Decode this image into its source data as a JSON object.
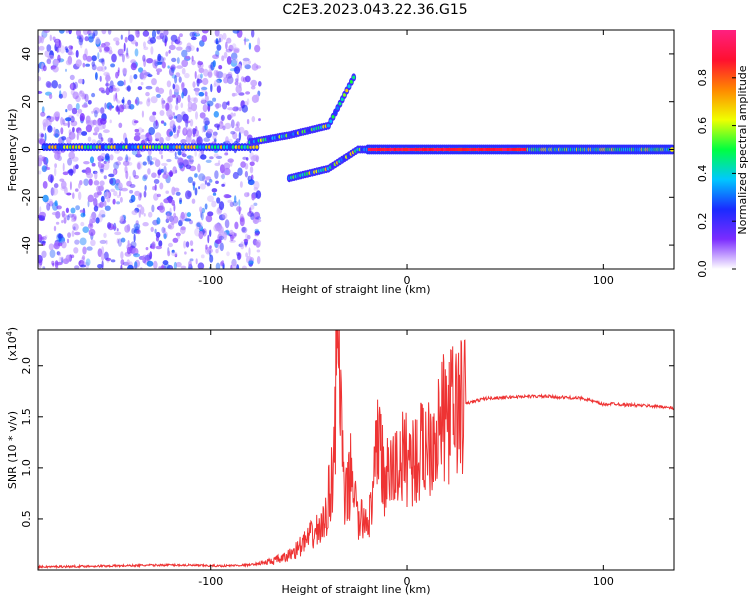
{
  "title": "C2E3.2023.043.22.36.G15",
  "chart_data": [
    {
      "type": "heatmap",
      "xlabel": "Height of straight line (km)",
      "ylabel": "Frequency (Hz)",
      "xlim": [
        -188,
        136
      ],
      "ylim": [
        -50,
        50
      ],
      "xticks": [
        -100,
        0,
        100
      ],
      "yticks": [
        -40,
        -20,
        0,
        20,
        40
      ],
      "colorbar": {
        "label": "Normalized spectral amplitude",
        "range": [
          0,
          1
        ],
        "ticks": [
          "0.0",
          "0.2",
          "0.4",
          "0.6",
          "0.8"
        ],
        "colors": [
          "#ffffff",
          "#7b2cff",
          "#1a2bff",
          "#00c8ff",
          "#00ff40",
          "#f0ff00",
          "#ff8800",
          "#ff1030",
          "#ff2080"
        ]
      },
      "features": [
        {
          "name": "noise region",
          "x": [
            -188,
            -75
          ],
          "freq": [
            -50,
            50
          ]
        },
        {
          "name": "carrier line left",
          "x": [
            -185,
            -75
          ],
          "freq": 1
        },
        {
          "name": "rising branch",
          "points": [
            [
              -80,
              3
            ],
            [
              -60,
              6
            ],
            [
              -40,
              10
            ],
            [
              -26,
              32
            ]
          ]
        },
        {
          "name": "falling branch",
          "points": [
            [
              -60,
              -12
            ],
            [
              -40,
              -8
            ],
            [
              -25,
              0
            ],
            [
              -10,
              0
            ]
          ]
        },
        {
          "name": "carrier line right",
          "x": [
            -20,
            136
          ],
          "freq": 0
        }
      ]
    },
    {
      "type": "line",
      "xlabel": "Height of straight line (km)",
      "ylabel": "SNR (10 * v/v)",
      "yscale_label": "(x10",
      "yscale_exp": "4",
      "xlim": [
        -188,
        136
      ],
      "ylim": [
        0,
        2.35
      ],
      "xticks": [
        -100,
        0,
        100
      ],
      "yticks": [
        0.5,
        1.0,
        1.5,
        2.0
      ],
      "series": [
        {
          "color": "#ee3333",
          "x": [
            -188,
            -150,
            -120,
            -95,
            -80,
            -70,
            -62,
            -55,
            -48,
            -42,
            -38,
            -35,
            -32,
            -28,
            -25,
            -22,
            -18,
            -14,
            -12,
            -8,
            -4,
            0,
            5,
            10,
            15,
            20,
            25,
            30,
            40,
            50,
            60,
            70,
            80,
            90,
            95,
            100,
            105,
            110,
            120,
            130,
            136
          ],
          "values": [
            0.03,
            0.04,
            0.05,
            0.04,
            0.05,
            0.08,
            0.12,
            0.22,
            0.35,
            0.45,
            0.95,
            2.3,
            0.6,
            1.0,
            0.45,
            0.5,
            0.55,
            1.5,
            0.85,
            0.95,
            1.05,
            1.12,
            1.08,
            1.25,
            1.38,
            1.5,
            1.58,
            1.63,
            1.68,
            1.69,
            1.7,
            1.7,
            1.69,
            1.68,
            1.65,
            1.62,
            1.63,
            1.62,
            1.61,
            1.6,
            1.58
          ]
        }
      ]
    }
  ]
}
